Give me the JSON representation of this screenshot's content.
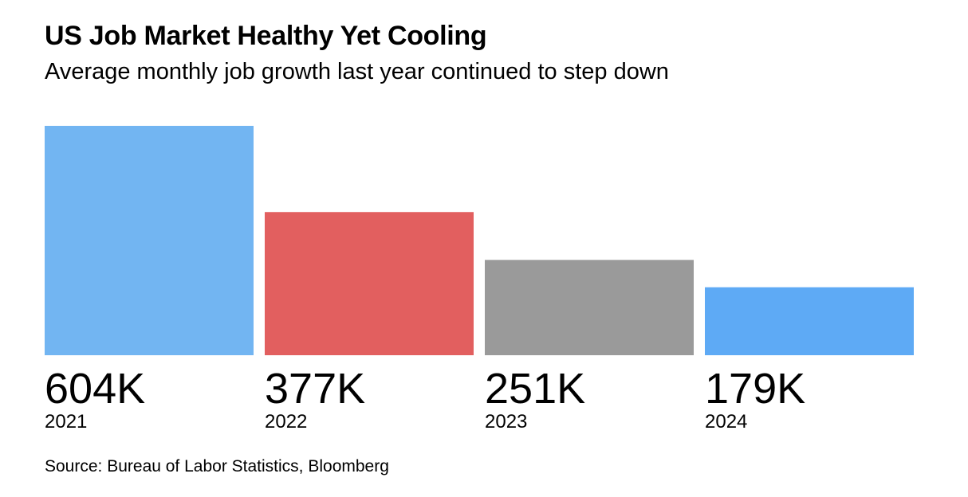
{
  "header": {
    "title": "US Job Market Healthy Yet Cooling",
    "subtitle": "Average monthly job growth last year continued to step down"
  },
  "chart_data": {
    "type": "bar",
    "title": "US Job Market Healthy Yet Cooling",
    "subtitle": "Average monthly job growth last year continued to step down",
    "categories": [
      "2021",
      "2022",
      "2023",
      "2024"
    ],
    "values": [
      604,
      377,
      251,
      179
    ],
    "value_labels": [
      "604K",
      "377K",
      "251K",
      "179K"
    ],
    "unit": "K",
    "colors": [
      "#72b5f2",
      "#e25f5f",
      "#9a9a9a",
      "#5eaaf5"
    ],
    "ylim": [
      0,
      604
    ],
    "grid": false,
    "legend": "none"
  },
  "footer": {
    "source": "Source: Bureau of Labor Statistics, Bloomberg"
  }
}
